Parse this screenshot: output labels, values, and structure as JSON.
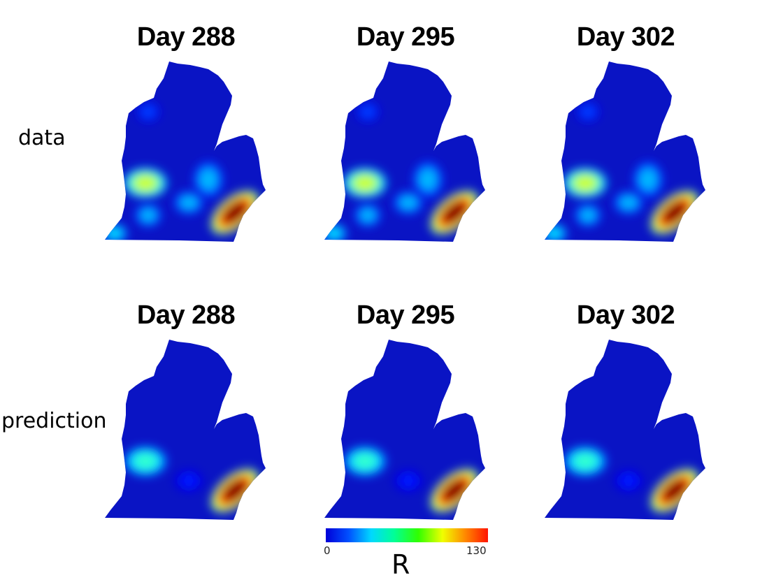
{
  "row_labels": {
    "data": "data",
    "prediction": "prediction"
  },
  "panels": [
    {
      "id": "data-288",
      "title": "Day 288",
      "row": "data",
      "hotspots": [
        {
          "region": "west-center",
          "level": 75
        },
        {
          "region": "center-east",
          "level": 40
        },
        {
          "region": "south-center",
          "level": 40
        },
        {
          "region": "southwest",
          "level": 40
        },
        {
          "region": "northwest",
          "level": 25
        },
        {
          "region": "southwest-coast",
          "level": 45
        },
        {
          "region": "detroit",
          "level": 130
        }
      ]
    },
    {
      "id": "data-295",
      "title": "Day 295",
      "row": "data",
      "hotspots": [
        {
          "region": "west-center",
          "level": 75
        },
        {
          "region": "center-east",
          "level": 40
        },
        {
          "region": "south-center",
          "level": 40
        },
        {
          "region": "southwest",
          "level": 40
        },
        {
          "region": "northwest",
          "level": 25
        },
        {
          "region": "southwest-coast",
          "level": 45
        },
        {
          "region": "detroit",
          "level": 130
        }
      ]
    },
    {
      "id": "data-302",
      "title": "Day 302",
      "row": "data",
      "hotspots": [
        {
          "region": "west-center",
          "level": 75
        },
        {
          "region": "center-east",
          "level": 40
        },
        {
          "region": "south-center",
          "level": 40
        },
        {
          "region": "southwest",
          "level": 40
        },
        {
          "region": "northwest",
          "level": 25
        },
        {
          "region": "southwest-coast",
          "level": 45
        },
        {
          "region": "detroit",
          "level": 130
        }
      ]
    },
    {
      "id": "pred-288",
      "title": "Day 288",
      "row": "prediction",
      "hotspots": [
        {
          "region": "west-center",
          "level": 55
        },
        {
          "region": "south-center",
          "level": 20
        },
        {
          "region": "detroit",
          "level": 130
        }
      ]
    },
    {
      "id": "pred-295",
      "title": "Day 295",
      "row": "prediction",
      "hotspots": [
        {
          "region": "west-center",
          "level": 55
        },
        {
          "region": "south-center",
          "level": 20
        },
        {
          "region": "detroit",
          "level": 130
        }
      ]
    },
    {
      "id": "pred-302",
      "title": "Day 302",
      "row": "prediction",
      "hotspots": [
        {
          "region": "west-center",
          "level": 55
        },
        {
          "region": "south-center",
          "level": 20
        },
        {
          "region": "detroit",
          "level": 130
        }
      ]
    }
  ],
  "colorbar": {
    "min_label": "0",
    "max_label": "130",
    "variable": "R",
    "min": 0,
    "max": 130,
    "colormap": "jet"
  },
  "colors": {
    "base": "#0a14c4"
  }
}
